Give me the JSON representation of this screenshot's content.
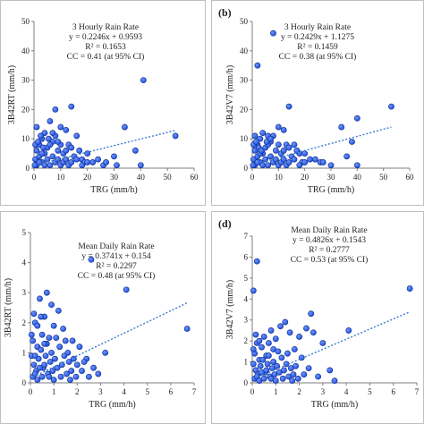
{
  "chart_data": [
    {
      "type": "scatter",
      "panel_label": "",
      "xlabel": "TRG (mm/h)",
      "ylabel": "3B42RT (mm/h)",
      "xlim": [
        0,
        60
      ],
      "ylim": [
        0,
        50
      ],
      "xticks": [
        0,
        10,
        20,
        30,
        40,
        50,
        60
      ],
      "yticks": [
        0,
        10,
        20,
        30,
        40,
        50
      ],
      "grid": false,
      "annotation": [
        "3 Hourly Rain Rate",
        "y = 0.2246x + 0.9593",
        "R² = 0.1653",
        "CC = 0.41 (at 95% CI)"
      ],
      "trendline": {
        "slope": 0.2246,
        "intercept": 0.9593,
        "x_range": [
          0,
          53
        ]
      },
      "points": [
        [
          41,
          30
        ],
        [
          14,
          21
        ],
        [
          8,
          20
        ],
        [
          53,
          11
        ],
        [
          34,
          14
        ],
        [
          38,
          6
        ],
        [
          40,
          1
        ],
        [
          30,
          4
        ],
        [
          26,
          1
        ],
        [
          22,
          2
        ],
        [
          18,
          3
        ],
        [
          16,
          11
        ],
        [
          12,
          13
        ],
        [
          10,
          14
        ],
        [
          6,
          16
        ],
        [
          4,
          12
        ],
        [
          3,
          10
        ],
        [
          1,
          14
        ],
        [
          2,
          8
        ],
        [
          5,
          7
        ],
        [
          7,
          9
        ],
        [
          9,
          6
        ],
        [
          11,
          5
        ],
        [
          13,
          8
        ],
        [
          15,
          4
        ],
        [
          17,
          6
        ],
        [
          19,
          2
        ],
        [
          20,
          5
        ],
        [
          0.5,
          3
        ],
        [
          1,
          6
        ],
        [
          2,
          4
        ],
        [
          3,
          2
        ],
        [
          4,
          5
        ],
        [
          5,
          3
        ],
        [
          6,
          1
        ],
        [
          7,
          4
        ],
        [
          8,
          2
        ],
        [
          9,
          3
        ],
        [
          10,
          1
        ],
        [
          11,
          2
        ],
        [
          12,
          3
        ],
        [
          13,
          1
        ],
        [
          14,
          2
        ],
        [
          1,
          1
        ],
        [
          2,
          2
        ],
        [
          3,
          5
        ],
        [
          4,
          1
        ],
        [
          0.5,
          8
        ],
        [
          6,
          8
        ],
        [
          8,
          11
        ],
        [
          10,
          8
        ],
        [
          12,
          6
        ],
        [
          14,
          7
        ],
        [
          16,
          3
        ],
        [
          18,
          1
        ],
        [
          20,
          2
        ],
        [
          24,
          3
        ],
        [
          27,
          2
        ],
        [
          31,
          1
        ],
        [
          0.3,
          1
        ],
        [
          1.5,
          9
        ],
        [
          2.5,
          11
        ],
        [
          3.5,
          7
        ],
        [
          5.5,
          10
        ],
        [
          7,
          12
        ],
        [
          9,
          9
        ]
      ]
    },
    {
      "type": "scatter",
      "panel_label": "(b)",
      "xlabel": "TRG (mm/h)",
      "ylabel": "3B42V7 (mm/h)",
      "xlim": [
        0,
        60
      ],
      "ylim": [
        0,
        50
      ],
      "xticks": [
        0,
        10,
        20,
        30,
        40,
        50,
        60
      ],
      "yticks": [
        0,
        10,
        20,
        30,
        40,
        50
      ],
      "grid": false,
      "annotation": [
        "3 Hourly Rain Rate",
        "y = 0.2429x + 1.1275",
        "R² = 0.1459",
        "CC = 0.38 (at 95% CI)"
      ],
      "trendline": {
        "slope": 0.2429,
        "intercept": 1.1275,
        "x_range": [
          0,
          53
        ]
      },
      "points": [
        [
          8,
          46
        ],
        [
          2,
          35
        ],
        [
          14,
          21
        ],
        [
          40,
          17
        ],
        [
          53,
          21
        ],
        [
          34,
          14
        ],
        [
          38,
          9
        ],
        [
          36,
          4
        ],
        [
          40,
          1
        ],
        [
          30,
          1
        ],
        [
          26,
          2
        ],
        [
          22,
          3
        ],
        [
          18,
          5
        ],
        [
          16,
          8
        ],
        [
          12,
          13
        ],
        [
          10,
          14
        ],
        [
          6,
          11
        ],
        [
          4,
          12
        ],
        [
          3,
          10
        ],
        [
          1,
          11
        ],
        [
          2,
          8
        ],
        [
          5,
          7
        ],
        [
          7,
          9
        ],
        [
          9,
          6
        ],
        [
          11,
          5
        ],
        [
          13,
          8
        ],
        [
          15,
          4
        ],
        [
          17,
          6
        ],
        [
          19,
          2
        ],
        [
          20,
          5
        ],
        [
          0.5,
          3
        ],
        [
          1,
          6
        ],
        [
          2,
          4
        ],
        [
          3,
          2
        ],
        [
          4,
          5
        ],
        [
          5,
          3
        ],
        [
          6,
          1
        ],
        [
          7,
          4
        ],
        [
          8,
          2
        ],
        [
          9,
          3
        ],
        [
          10,
          1
        ],
        [
          11,
          2
        ],
        [
          12,
          3
        ],
        [
          13,
          1
        ],
        [
          14,
          2
        ],
        [
          1,
          1
        ],
        [
          2,
          2
        ],
        [
          3,
          5
        ],
        [
          4,
          1
        ],
        [
          0.5,
          8
        ],
        [
          6,
          8
        ],
        [
          8,
          11
        ],
        [
          10,
          8
        ],
        [
          12,
          6
        ],
        [
          14,
          7
        ],
        [
          16,
          3
        ],
        [
          18,
          1
        ],
        [
          20,
          2
        ],
        [
          24,
          3
        ],
        [
          27,
          2
        ],
        [
          0.3,
          1
        ],
        [
          1.5,
          9
        ],
        [
          2.5,
          7
        ],
        [
          3.5,
          6
        ],
        [
          5.5,
          9
        ],
        [
          7,
          10
        ]
      ]
    },
    {
      "type": "scatter",
      "panel_label": "",
      "xlabel": "TRG (mm/h)",
      "ylabel": "3B42RT (mm/h)",
      "xlim": [
        0,
        7
      ],
      "ylim": [
        0,
        5
      ],
      "xticks": [
        0,
        1,
        2,
        3,
        4,
        5,
        6,
        7
      ],
      "yticks": [
        0,
        1,
        2,
        3,
        4,
        5
      ],
      "grid": false,
      "annotation": [
        "Mean Daily Rain Rate",
        "y = 0.3741x + 0.154",
        "R² = 0.2297",
        "CC = 0.48 (at 95% CI)"
      ],
      "trendline": {
        "slope": 0.3741,
        "intercept": 0.154,
        "x_range": [
          0,
          6.7
        ]
      },
      "points": [
        [
          2.6,
          4.1
        ],
        [
          4.1,
          3.1
        ],
        [
          6.7,
          1.8
        ],
        [
          3.2,
          1.0
        ],
        [
          2.4,
          0.8
        ],
        [
          2.0,
          0.6
        ],
        [
          1.8,
          1.4
        ],
        [
          1.6,
          1.0
        ],
        [
          1.4,
          1.8
        ],
        [
          1.2,
          2.4
        ],
        [
          1.0,
          1.9
        ],
        [
          0.9,
          2.6
        ],
        [
          0.8,
          1.5
        ],
        [
          0.7,
          3.0
        ],
        [
          0.6,
          2.2
        ],
        [
          0.5,
          1.6
        ],
        [
          0.4,
          2.8
        ],
        [
          0.3,
          1.2
        ],
        [
          0.2,
          2.0
        ],
        [
          0.1,
          1.4
        ],
        [
          0.05,
          0.9
        ],
        [
          0.15,
          0.6
        ],
        [
          0.25,
          0.4
        ],
        [
          0.35,
          0.8
        ],
        [
          0.45,
          1.1
        ],
        [
          0.55,
          0.5
        ],
        [
          0.65,
          0.9
        ],
        [
          0.75,
          0.3
        ],
        [
          0.85,
          0.7
        ],
        [
          0.95,
          0.4
        ],
        [
          1.05,
          0.8
        ],
        [
          1.15,
          0.5
        ],
        [
          1.25,
          1.2
        ],
        [
          1.35,
          0.6
        ],
        [
          1.45,
          0.9
        ],
        [
          1.55,
          0.3
        ],
        [
          1.65,
          0.7
        ],
        [
          1.75,
          0.4
        ],
        [
          1.85,
          0.8
        ],
        [
          1.95,
          0.2
        ],
        [
          2.1,
          1.2
        ],
        [
          2.2,
          0.4
        ],
        [
          2.3,
          0.7
        ],
        [
          2.5,
          0.2
        ],
        [
          2.7,
          0.5
        ],
        [
          2.9,
          0.3
        ],
        [
          0.1,
          0.2
        ],
        [
          0.2,
          0.3
        ],
        [
          0.3,
          0.1
        ],
        [
          0.4,
          0.5
        ],
        [
          0.5,
          0.2
        ],
        [
          0.6,
          0.6
        ],
        [
          0.7,
          1.3
        ],
        [
          0.8,
          0.2
        ],
        [
          0.9,
          1.0
        ],
        [
          1.0,
          0.1
        ],
        [
          1.1,
          1.5
        ],
        [
          1.3,
          0.2
        ],
        [
          1.5,
          1.4
        ],
        [
          1.7,
          0.1
        ],
        [
          0.05,
          1.6
        ],
        [
          0.15,
          2.3
        ],
        [
          0.3,
          1.9
        ],
        [
          0.45,
          2.2
        ],
        [
          0.6,
          1.3
        ],
        [
          0.2,
          0.9
        ]
      ]
    },
    {
      "type": "scatter",
      "panel_label": "(d)",
      "xlabel": "TRG (mm/h)",
      "ylabel": "3B42V7 (mm/h)",
      "xlim": [
        0,
        7
      ],
      "ylim": [
        0,
        7
      ],
      "xticks": [
        0,
        1,
        2,
        3,
        4,
        5,
        6,
        7
      ],
      "yticks": [
        0,
        1,
        2,
        3,
        4,
        5,
        6,
        7
      ],
      "grid": false,
      "annotation": [
        "Mean Daily Rain Rate",
        "y = 0.4826x + 0.1543",
        "R² = 0.2777",
        "CC = 0.53 (at 95% CI)"
      ],
      "trendline": {
        "slope": 0.4826,
        "intercept": 0.1543,
        "x_range": [
          0,
          6.7
        ]
      },
      "points": [
        [
          0.2,
          5.8
        ],
        [
          0.05,
          4.4
        ],
        [
          6.7,
          4.5
        ],
        [
          4.1,
          2.5
        ],
        [
          3.0,
          1.9
        ],
        [
          2.6,
          2.4
        ],
        [
          2.5,
          3.3
        ],
        [
          2.3,
          2.6
        ],
        [
          2.0,
          2.2
        ],
        [
          1.6,
          2.4
        ],
        [
          1.4,
          2.9
        ],
        [
          1.2,
          2.7
        ],
        [
          1.0,
          2.1
        ],
        [
          0.9,
          1.6
        ],
        [
          0.8,
          2.5
        ],
        [
          0.7,
          1.9
        ],
        [
          0.6,
          1.3
        ],
        [
          0.5,
          2.2
        ],
        [
          0.4,
          1.7
        ],
        [
          0.3,
          1.1
        ],
        [
          0.2,
          1.9
        ],
        [
          0.1,
          1.4
        ],
        [
          0.05,
          0.9
        ],
        [
          0.15,
          0.6
        ],
        [
          0.25,
          0.4
        ],
        [
          0.35,
          0.8
        ],
        [
          0.45,
          1.1
        ],
        [
          0.55,
          0.5
        ],
        [
          0.65,
          0.9
        ],
        [
          0.75,
          0.3
        ],
        [
          0.85,
          0.7
        ],
        [
          0.95,
          0.4
        ],
        [
          1.05,
          0.8
        ],
        [
          1.15,
          0.5
        ],
        [
          1.25,
          1.2
        ],
        [
          1.35,
          0.6
        ],
        [
          1.45,
          0.9
        ],
        [
          1.55,
          0.3
        ],
        [
          1.65,
          0.7
        ],
        [
          1.75,
          0.4
        ],
        [
          1.85,
          0.8
        ],
        [
          1.95,
          0.2
        ],
        [
          2.1,
          1.2
        ],
        [
          2.2,
          0.4
        ],
        [
          2.4,
          0.7
        ],
        [
          2.8,
          0.3
        ],
        [
          3.3,
          0.6
        ],
        [
          3.5,
          0.1
        ],
        [
          0.1,
          0.2
        ],
        [
          0.2,
          0.3
        ],
        [
          0.3,
          0.1
        ],
        [
          0.4,
          0.5
        ],
        [
          0.5,
          0.2
        ],
        [
          0.6,
          0.6
        ],
        [
          0.7,
          1.3
        ],
        [
          0.8,
          0.2
        ],
        [
          0.9,
          1.0
        ],
        [
          1.0,
          0.1
        ],
        [
          1.1,
          1.5
        ],
        [
          1.3,
          0.2
        ],
        [
          1.5,
          1.4
        ],
        [
          1.7,
          0.1
        ],
        [
          0.05,
          1.6
        ],
        [
          0.15,
          2.3
        ],
        [
          0.3,
          2.0
        ],
        [
          1.8,
          1.6
        ]
      ]
    }
  ],
  "colors": {
    "marker_fill": "#1f4fd8",
    "marker_stroke": "#0b2a8c",
    "trendline": "#3a7bd5",
    "axis": "#7f7f7f",
    "panel_border": "#bfbfbf"
  }
}
